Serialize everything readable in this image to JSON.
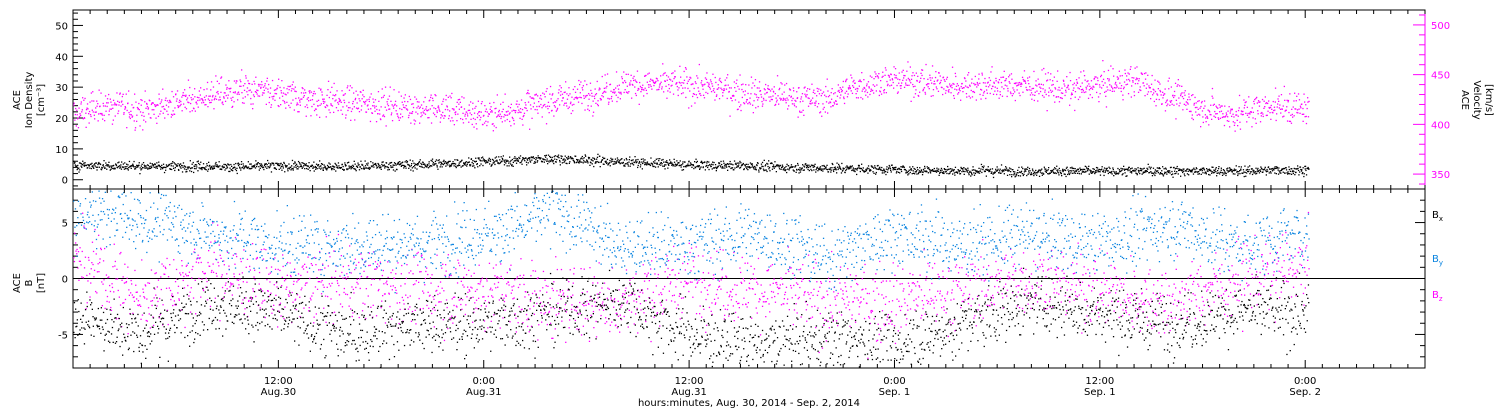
{
  "xaxis": {
    "ticks": [
      {
        "time": "12:00",
        "date": "Aug.30",
        "hour": 12
      },
      {
        "time": "0:00",
        "date": "Aug.31",
        "hour": 24
      },
      {
        "time": "12:00",
        "date": "Aug.31",
        "hour": 36
      },
      {
        "time": "0:00",
        "date": "Sep. 1",
        "hour": 48
      },
      {
        "time": "12:00",
        "date": "Sep. 1",
        "hour": 60
      },
      {
        "time": "0:00",
        "date": "Sep. 2",
        "hour": 72
      }
    ],
    "title": "hours:minutes, Aug. 30, 2014 - Sep.  2, 2014",
    "range_hours": [
      0,
      79
    ],
    "data_end_hour": 72.2
  },
  "chart_data": [
    {
      "type": "scatter",
      "panel": "top",
      "left_axis": {
        "label_lines": [
          "ACE",
          "Ion Density",
          "[cm⁻³]"
        ],
        "ticks": [
          0,
          10,
          20,
          30,
          40,
          50
        ],
        "ylim": [
          -3,
          55
        ]
      },
      "right_axis": {
        "label_lines": [
          "ACE",
          "Velocity",
          "[km/s]"
        ],
        "ticks": [
          350,
          400,
          450,
          500
        ],
        "ylim": [
          335,
          515
        ],
        "color": "#ff00ff"
      },
      "series": [
        {
          "axis": "left",
          "color": "#000000",
          "keypoints": [
            [
              0,
              5
            ],
            [
              4,
              4.5
            ],
            [
              10,
              4.5
            ],
            [
              16,
              4.5
            ],
            [
              20,
              5
            ],
            [
              24,
              6
            ],
            [
              28,
              7
            ],
            [
              32,
              6
            ],
            [
              36,
              5
            ],
            [
              40,
              4.5
            ],
            [
              44,
              4
            ],
            [
              48,
              3.5
            ],
            [
              52,
              3
            ],
            [
              56,
              3
            ],
            [
              60,
              3
            ],
            [
              64,
              3
            ],
            [
              68,
              3
            ],
            [
              72,
              3.5
            ]
          ]
        },
        {
          "axis": "right",
          "color": "#ff00ff",
          "keypoints": [
            [
              0,
              410
            ],
            [
              2,
              420
            ],
            [
              4,
              415
            ],
            [
              8,
              430
            ],
            [
              10,
              435
            ],
            [
              14,
              425
            ],
            [
              18,
              420
            ],
            [
              22,
              415
            ],
            [
              24,
              410
            ],
            [
              26,
              415
            ],
            [
              28,
              425
            ],
            [
              30,
              430
            ],
            [
              32,
              440
            ],
            [
              36,
              440
            ],
            [
              40,
              430
            ],
            [
              44,
              425
            ],
            [
              46,
              440
            ],
            [
              48,
              445
            ],
            [
              52,
              440
            ],
            [
              56,
              440
            ],
            [
              58,
              435
            ],
            [
              60,
              440
            ],
            [
              62,
              445
            ],
            [
              64,
              430
            ],
            [
              66,
              415
            ],
            [
              68,
              410
            ],
            [
              70,
              420
            ],
            [
              72,
              415
            ]
          ]
        }
      ]
    },
    {
      "type": "scatter",
      "panel": "bottom",
      "left_axis": {
        "label_lines": [
          "ACE",
          "B",
          "[nT]"
        ],
        "ticks": [
          -5,
          0,
          5
        ],
        "ylim": [
          -8,
          8
        ]
      },
      "zero_line": true,
      "series": [
        {
          "name": "Bx",
          "name_main": "B",
          "name_sub": "x",
          "color": "#000000",
          "keypoints": [
            [
              0,
              -3
            ],
            [
              4,
              -5
            ],
            [
              8,
              -2
            ],
            [
              12,
              -3
            ],
            [
              16,
              -5
            ],
            [
              20,
              -4
            ],
            [
              24,
              -4
            ],
            [
              28,
              -3
            ],
            [
              32,
              -2
            ],
            [
              36,
              -5
            ],
            [
              40,
              -6
            ],
            [
              44,
              -5
            ],
            [
              48,
              -6
            ],
            [
              52,
              -4
            ],
            [
              56,
              -2
            ],
            [
              60,
              -3
            ],
            [
              64,
              -4
            ],
            [
              68,
              -3
            ],
            [
              72,
              -3
            ]
          ]
        },
        {
          "name": "By",
          "name_main": "B",
          "name_sub": "y",
          "color": "#0a84e0",
          "keypoints": [
            [
              0,
              6
            ],
            [
              4,
              5.5
            ],
            [
              8,
              4
            ],
            [
              12,
              3
            ],
            [
              16,
              3
            ],
            [
              20,
              3
            ],
            [
              24,
              4
            ],
            [
              28,
              6
            ],
            [
              32,
              3
            ],
            [
              36,
              3
            ],
            [
              40,
              4
            ],
            [
              44,
              2
            ],
            [
              48,
              4
            ],
            [
              52,
              3
            ],
            [
              56,
              4
            ],
            [
              60,
              3
            ],
            [
              64,
              5
            ],
            [
              68,
              3
            ],
            [
              72,
              4
            ]
          ]
        },
        {
          "name": "Bz",
          "name_main": "B",
          "name_sub": "z",
          "color": "#ff00ff",
          "keypoints": [
            [
              0,
              2
            ],
            [
              4,
              -2
            ],
            [
              8,
              1
            ],
            [
              12,
              -1
            ],
            [
              16,
              0
            ],
            [
              20,
              -1
            ],
            [
              24,
              -1
            ],
            [
              28,
              -2
            ],
            [
              32,
              -2
            ],
            [
              36,
              0
            ],
            [
              40,
              -1
            ],
            [
              44,
              -2
            ],
            [
              48,
              -2
            ],
            [
              52,
              -1
            ],
            [
              56,
              0
            ],
            [
              60,
              -1
            ],
            [
              64,
              -2
            ],
            [
              68,
              0
            ],
            [
              72,
              1
            ]
          ]
        }
      ]
    }
  ]
}
